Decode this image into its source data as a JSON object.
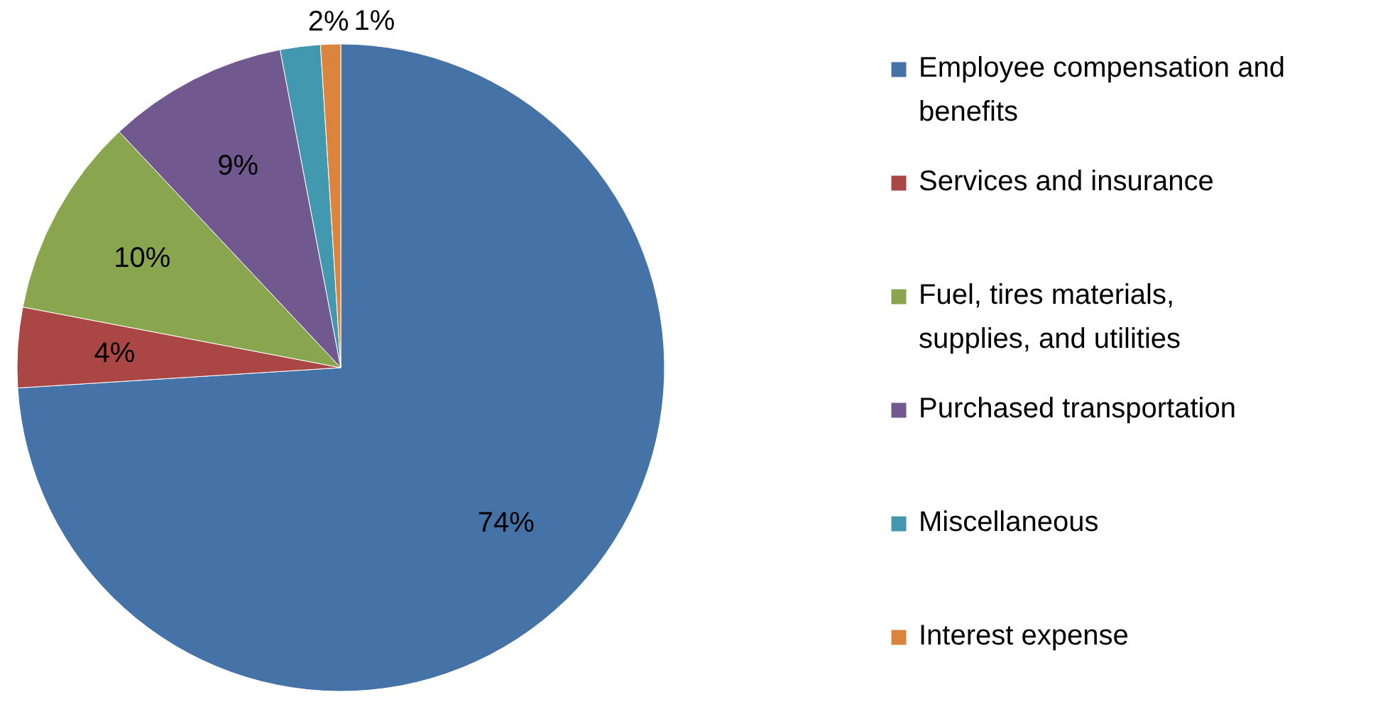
{
  "chart_data": {
    "type": "pie",
    "categories": [
      "Employee compensation and benefits",
      "Services and insurance",
      "Fuel, tires materials, supplies, and utilities",
      "Purchased transportation",
      "Miscellaneous",
      "Interest expense"
    ],
    "values": [
      74,
      4,
      10,
      9,
      2,
      1
    ],
    "colors": [
      "#4572a7",
      "#aa4643",
      "#89a54e",
      "#71588f",
      "#4198af",
      "#db843d"
    ],
    "value_labels": [
      "74%",
      "4%",
      "10%",
      "9%",
      "2%",
      "1%"
    ],
    "legend": "right"
  }
}
